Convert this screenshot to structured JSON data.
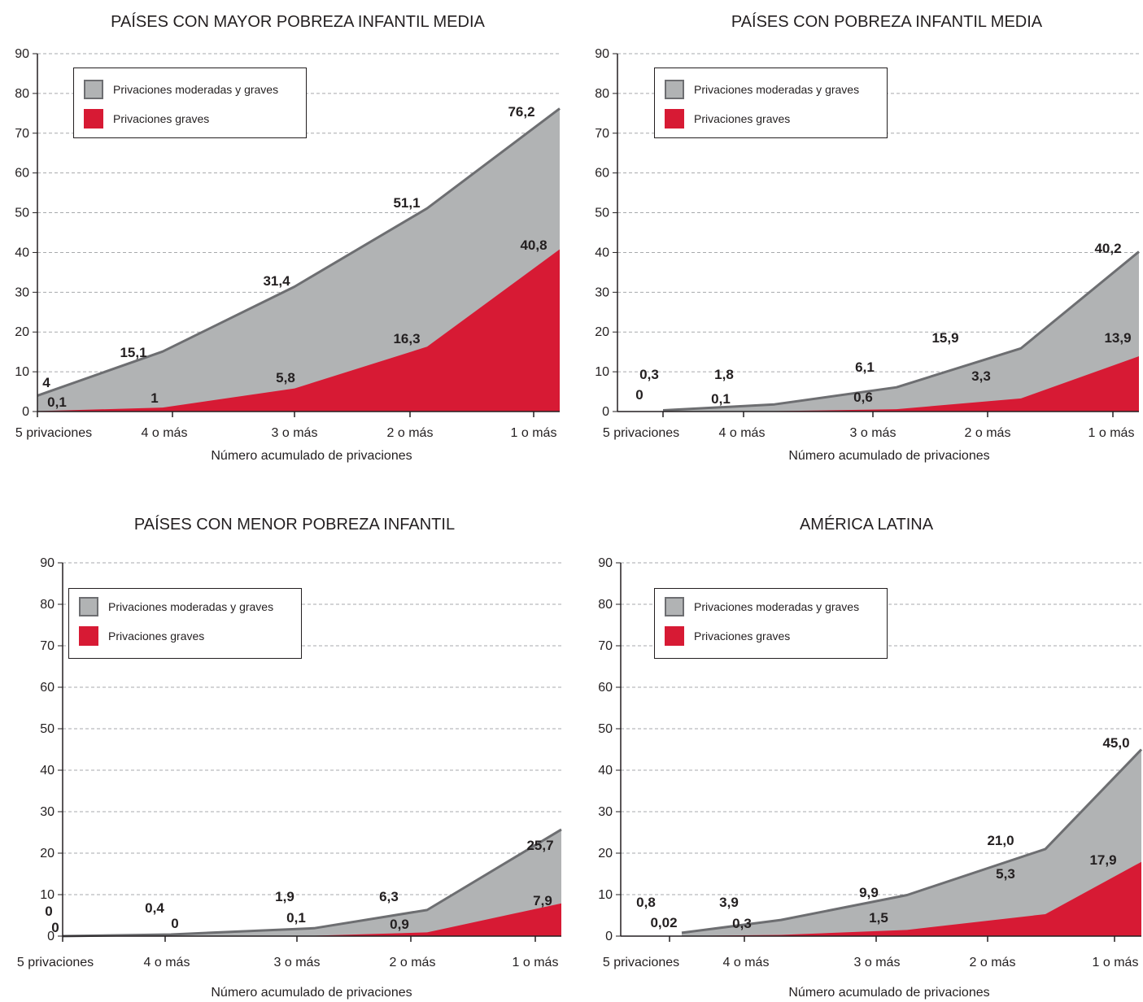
{
  "chart_data": [
    {
      "type": "area",
      "title": "PAÍSES CON MAYOR POBREZA INFANTIL MEDIA",
      "xlabel": "Número acumulado de privaciones",
      "ylabel": "",
      "ylim": [
        0,
        90
      ],
      "yticks": [
        "0",
        "10",
        "20",
        "30",
        "40",
        "50",
        "60",
        "70",
        "80",
        "90"
      ],
      "categories": [
        "5  privaciones",
        "4 o más",
        "3 o más",
        "2 o más",
        "1 o más"
      ],
      "legend_position": "top-left",
      "grid": true,
      "series": [
        {
          "name": "Privaciones moderadas y graves",
          "color": "#b1b3b4",
          "values": [
            4,
            15.1,
            31.4,
            51.1,
            76.2
          ],
          "labels": [
            "4",
            "15,1",
            "31,4",
            "51,1",
            "76,2"
          ]
        },
        {
          "name": "Privaciones graves",
          "color": "#d71a34",
          "values": [
            0.1,
            1,
            5.8,
            16.3,
            40.8
          ],
          "labels": [
            "0,1",
            "1",
            "5,8",
            "16,3",
            "40,8"
          ]
        }
      ]
    },
    {
      "type": "area",
      "title": "PAÍSES CON POBREZA INFANTIL MEDIA",
      "xlabel": "Número acumulado de privaciones",
      "ylabel": "",
      "ylim": [
        0,
        90
      ],
      "yticks": [
        "0",
        "10",
        "20",
        "30",
        "40",
        "50",
        "60",
        "70",
        "80",
        "90"
      ],
      "categories": [
        "5  privaciones",
        "4 o más",
        "3 o más",
        "2 o más",
        "1 o más"
      ],
      "legend_position": "top-left",
      "grid": true,
      "series": [
        {
          "name": "Privaciones moderadas y graves",
          "color": "#b1b3b4",
          "values": [
            0.3,
            1.8,
            6.1,
            15.9,
            40.2
          ],
          "labels": [
            "0,3",
            "1,8",
            "6,1",
            "15,9",
            "40,2"
          ]
        },
        {
          "name": "Privaciones graves",
          "color": "#d71a34",
          "values": [
            0,
            0.1,
            0.6,
            3.3,
            13.9
          ],
          "labels": [
            "0",
            "0,1",
            "0,6",
            "3,3",
            "13,9"
          ]
        }
      ]
    },
    {
      "type": "area",
      "title": "PAÍSES CON MENOR POBREZA INFANTIL",
      "xlabel": "Número acumulado de privaciones",
      "ylabel": "",
      "ylim": [
        0,
        90
      ],
      "yticks": [
        "0",
        "10",
        "20",
        "30",
        "40",
        "50",
        "60",
        "70",
        "80",
        "90"
      ],
      "categories": [
        "5  privaciones",
        "4 o más",
        "3 o más",
        "2 o más",
        "1 o más"
      ],
      "legend_position": "top-left",
      "grid": true,
      "series": [
        {
          "name": "Privaciones moderadas y graves",
          "color": "#b1b3b4",
          "values": [
            0,
            0.4,
            1.9,
            6.3,
            25.7
          ],
          "labels": [
            "0",
            "0,4",
            "1,9",
            "6,3",
            "25,7"
          ]
        },
        {
          "name": "Privaciones graves",
          "color": "#d71a34",
          "values": [
            0,
            0,
            0.1,
            0.9,
            7.9
          ],
          "labels": [
            "0",
            "0",
            "0,1",
            "0,9",
            "7,9"
          ]
        }
      ]
    },
    {
      "type": "area",
      "title": "AMÉRICA LATINA",
      "xlabel": "Número acumulado de privaciones",
      "ylabel": "",
      "ylim": [
        0,
        90
      ],
      "yticks": [
        "0",
        "10",
        "20",
        "30",
        "40",
        "50",
        "60",
        "70",
        "80",
        "90"
      ],
      "categories": [
        "5  privaciones",
        "4 o más",
        "3 o más",
        "2 o más",
        "1 o más"
      ],
      "legend_position": "top-left",
      "grid": true,
      "series": [
        {
          "name": "Privaciones moderadas y graves",
          "color": "#b1b3b4",
          "values": [
            0.8,
            3.9,
            9.9,
            21.0,
            45.0
          ],
          "labels": [
            "0,8",
            "3,9",
            "9,9",
            "21,0",
            "45,0"
          ]
        },
        {
          "name": "Privaciones graves",
          "color": "#d71a34",
          "values": [
            0.02,
            0.3,
            1.5,
            5.3,
            17.9
          ],
          "labels": [
            "0,02",
            "0,3",
            "1,5",
            "5,3",
            "17,9"
          ]
        }
      ]
    }
  ]
}
